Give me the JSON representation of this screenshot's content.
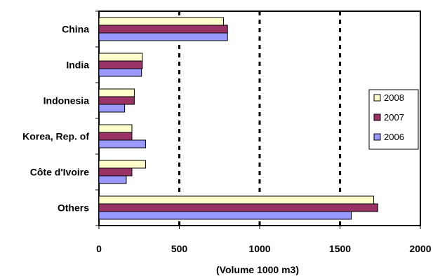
{
  "chart_data": {
    "type": "bar",
    "orientation": "horizontal",
    "categories": [
      "China",
      "India",
      "Indonesia",
      "Korea, Rep. of",
      "Côte d'Ivoire",
      "Others"
    ],
    "series": [
      {
        "name": "2008",
        "color": "#FFFFCC",
        "values": [
          775,
          270,
          220,
          205,
          290,
          1710
        ]
      },
      {
        "name": "2007",
        "color": "#993366",
        "values": [
          800,
          270,
          220,
          205,
          205,
          1735
        ]
      },
      {
        "name": "2006",
        "color": "#9999FF",
        "values": [
          800,
          265,
          160,
          290,
          170,
          1570
        ]
      }
    ],
    "xlabel": "(Volume 1000 m3)",
    "xlim": [
      0,
      2000
    ],
    "xticks": [
      0,
      500,
      1000,
      1500,
      2000
    ],
    "grid": "vertical-dashed",
    "legend": "right"
  }
}
